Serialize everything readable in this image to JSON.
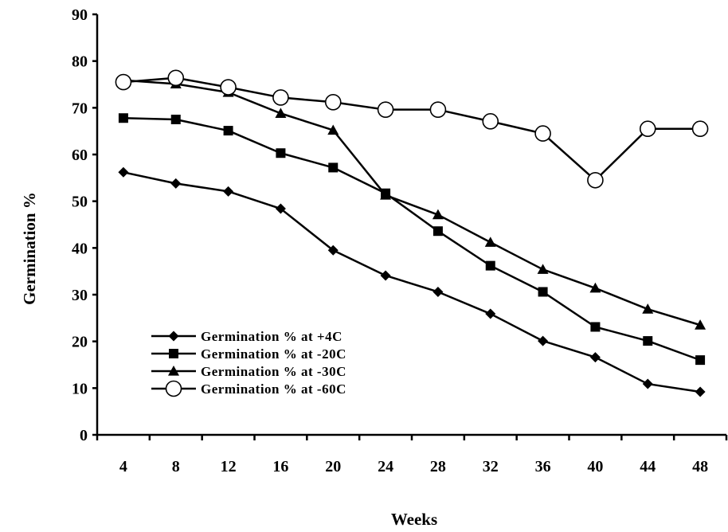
{
  "chart_data": {
    "type": "line",
    "title": "",
    "xlabel": "Weeks",
    "ylabel": "Germination %",
    "categories": [
      "4",
      "8",
      "12",
      "16",
      "20",
      "24",
      "28",
      "32",
      "36",
      "40",
      "44",
      "48"
    ],
    "ylim": [
      0,
      90
    ],
    "yticks": [
      "0",
      "10",
      "20",
      "30",
      "40",
      "50",
      "60",
      "70",
      "80",
      "90"
    ],
    "grid": false,
    "legend_position": "bottom-left",
    "series": [
      {
        "name": "Germination % at +4C",
        "marker": "diamond",
        "values": [
          56.2,
          53.8,
          52.1,
          48.4,
          39.5,
          34.1,
          30.6,
          25.9,
          20.1,
          16.6,
          10.9,
          9.2
        ]
      },
      {
        "name": "Germination % at -20C",
        "marker": "square",
        "values": [
          67.8,
          67.5,
          65.1,
          60.3,
          57.2,
          51.7,
          43.6,
          36.2,
          30.6,
          23.1,
          20.1,
          16.0
        ]
      },
      {
        "name": "Germination % at -30C",
        "marker": "triangle",
        "values": [
          75.9,
          75.1,
          73.3,
          68.8,
          65.2,
          51.3,
          47.1,
          41.2,
          35.4,
          31.4,
          26.9,
          23.5
        ]
      },
      {
        "name": "Germination % at -60C",
        "marker": "open-circle",
        "values": [
          75.5,
          76.4,
          74.4,
          72.2,
          71.2,
          69.6,
          69.6,
          67.1,
          64.5,
          54.5,
          65.5,
          65.5
        ]
      }
    ]
  }
}
